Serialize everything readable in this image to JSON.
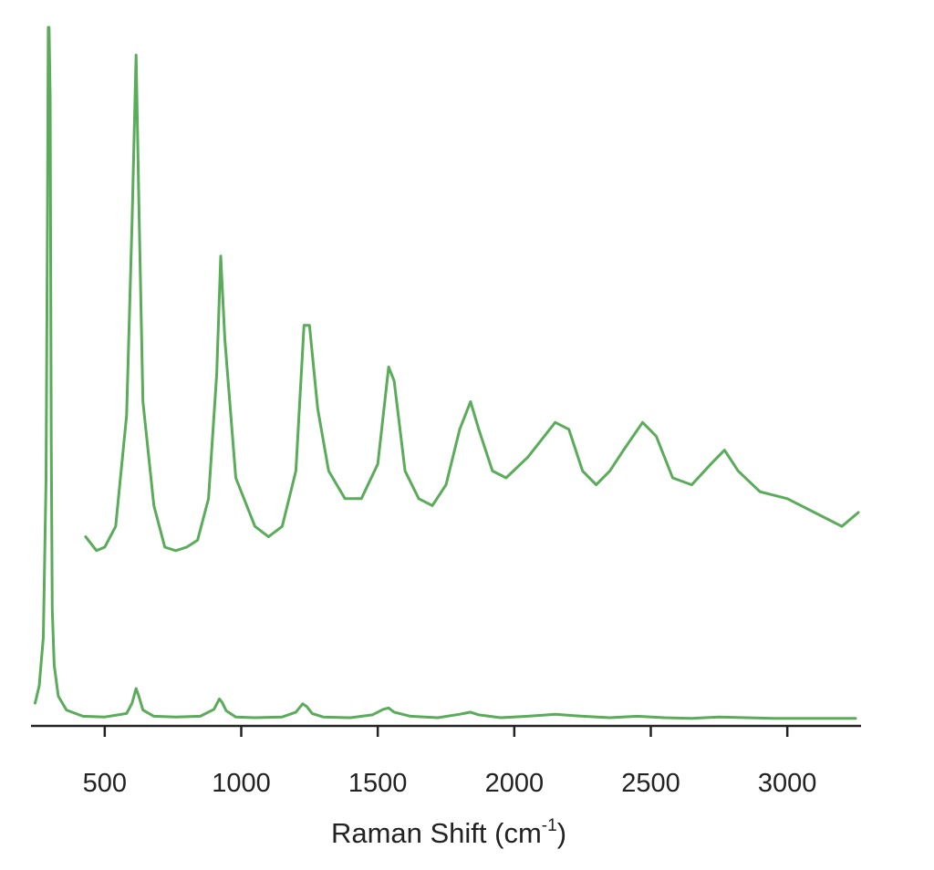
{
  "chart_data": {
    "type": "line",
    "title": "",
    "xlabel": {
      "prefix": "Raman Shift (cm",
      "superscript": "-1",
      "suffix": ")"
    },
    "ylabel": "",
    "xlim": [
      230,
      3270
    ],
    "ylim": [
      0,
      100
    ],
    "x_ticks": [
      500,
      1000,
      1500,
      2000,
      2500,
      3000
    ],
    "x_tick_labels": [
      "500",
      "1000",
      "1500",
      "2000",
      "2500",
      "3000"
    ],
    "y_axis_shown": false,
    "grid": false,
    "legend": "none",
    "line_color": "#5aab5a",
    "series": [
      {
        "role": "full-spectrum",
        "x": [
          245,
          260,
          275,
          285,
          290,
          293,
          296,
          300,
          304,
          308,
          315,
          330,
          360,
          420,
          500,
          580,
          600,
          615,
          625,
          640,
          680,
          760,
          850,
          900,
          920,
          930,
          945,
          980,
          1050,
          1150,
          1200,
          1225,
          1240,
          1260,
          1300,
          1400,
          1480,
          1520,
          1540,
          1560,
          1620,
          1720,
          1800,
          1840,
          1870,
          1950,
          2050,
          2150,
          2250,
          2350,
          2450,
          2550,
          2650,
          2750,
          2850,
          2950,
          3050,
          3150,
          3250
        ],
        "y": [
          2.5,
          5,
          12,
          35,
          72,
          100,
          100,
          90,
          40,
          16,
          8,
          3.5,
          1.5,
          0.6,
          0.5,
          1,
          2.5,
          4.6,
          3.5,
          1.5,
          0.6,
          0.5,
          0.6,
          1.6,
          3.1,
          2.6,
          1.4,
          0.5,
          0.4,
          0.5,
          1.2,
          2.4,
          2,
          1,
          0.5,
          0.4,
          0.8,
          1.6,
          1.8,
          1.2,
          0.6,
          0.4,
          0.9,
          1.2,
          0.8,
          0.4,
          0.6,
          0.9,
          0.6,
          0.4,
          0.6,
          0.4,
          0.3,
          0.5,
          0.4,
          0.3,
          0.3,
          0.3,
          0.3
        ]
      },
      {
        "role": "magnified-offset",
        "x": [
          430,
          470,
          500,
          540,
          580,
          600,
          615,
          625,
          640,
          680,
          720,
          760,
          800,
          840,
          880,
          910,
          925,
          940,
          980,
          1050,
          1100,
          1150,
          1200,
          1230,
          1250,
          1280,
          1320,
          1380,
          1440,
          1500,
          1540,
          1560,
          1600,
          1650,
          1700,
          1750,
          1800,
          1840,
          1870,
          1920,
          1970,
          2050,
          2150,
          2200,
          2250,
          2300,
          2350,
          2400,
          2470,
          2520,
          2580,
          2650,
          2720,
          2770,
          2820,
          2900,
          3000,
          3100,
          3200,
          3260
        ],
        "y": [
          26.5,
          24.5,
          25,
          28,
          44,
          72,
          96,
          75,
          46,
          31,
          25,
          24.5,
          25,
          26,
          32,
          50,
          67,
          55,
          35,
          28,
          26.5,
          28,
          36,
          57,
          57,
          45,
          36,
          32,
          32,
          37,
          51,
          49,
          36,
          32,
          31,
          34,
          42,
          46,
          42,
          36,
          35,
          38,
          43,
          42,
          36,
          34,
          36,
          39,
          43,
          41,
          35,
          34,
          37,
          39,
          36,
          33,
          32,
          30,
          28,
          30
        ]
      }
    ]
  }
}
